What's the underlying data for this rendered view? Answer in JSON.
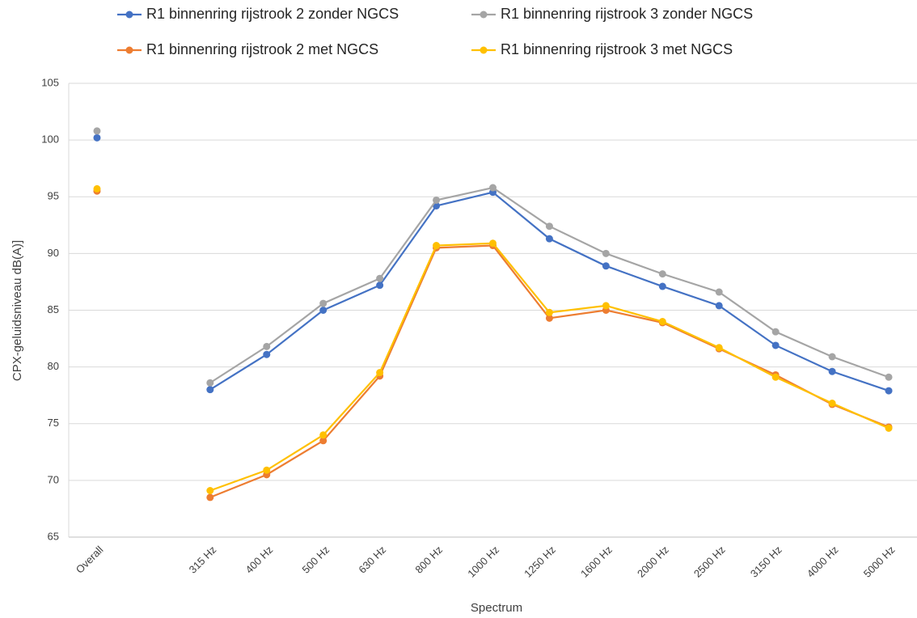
{
  "chart_data": {
    "type": "line",
    "x_label": "Spectrum",
    "y_label": "CPX-geluidsniveau dB(A)]",
    "categories": [
      "Overall",
      null,
      "315 Hz",
      "400 Hz",
      "500 Hz",
      "630 Hz",
      "800 Hz",
      "1000 Hz",
      "1250 Hz",
      "1600 Hz",
      "2000 Hz",
      "2500 Hz",
      "3150 Hz",
      "4000 Hz",
      "5000 Hz"
    ],
    "series": [
      {
        "name": "R1 binnenring rijstrook 2 zonder NGCS",
        "color": "#4472c4",
        "values": [
          100.2,
          null,
          78.0,
          81.1,
          85.0,
          87.2,
          94.2,
          95.4,
          91.3,
          88.9,
          87.1,
          85.4,
          81.9,
          79.6,
          77.9
        ]
      },
      {
        "name": "R1 binnenring rijstrook 3 zonder NGCS",
        "color": "#a5a5a5",
        "values": [
          100.8,
          null,
          78.6,
          81.8,
          85.6,
          87.8,
          94.7,
          95.8,
          92.4,
          90.0,
          88.2,
          86.6,
          83.1,
          80.9,
          79.1
        ]
      },
      {
        "name": "R1 binnenring rijstrook 2 met NGCS",
        "color": "#ed7d31",
        "values": [
          95.5,
          null,
          68.5,
          70.5,
          73.5,
          79.2,
          90.5,
          90.7,
          84.3,
          85.0,
          83.9,
          81.6,
          79.3,
          76.7,
          74.7
        ]
      },
      {
        "name": "R1 binnenring rijstrook 3 met NGCS",
        "color": "#ffc000",
        "values": [
          95.7,
          null,
          69.1,
          70.9,
          74.0,
          79.5,
          90.7,
          90.9,
          84.8,
          85.4,
          84.0,
          81.7,
          79.1,
          76.8,
          74.6
        ]
      }
    ],
    "ylim": [
      65,
      105
    ],
    "yticks": [
      65,
      70,
      75,
      80,
      85,
      90,
      95,
      100,
      105
    ],
    "grid": true
  }
}
